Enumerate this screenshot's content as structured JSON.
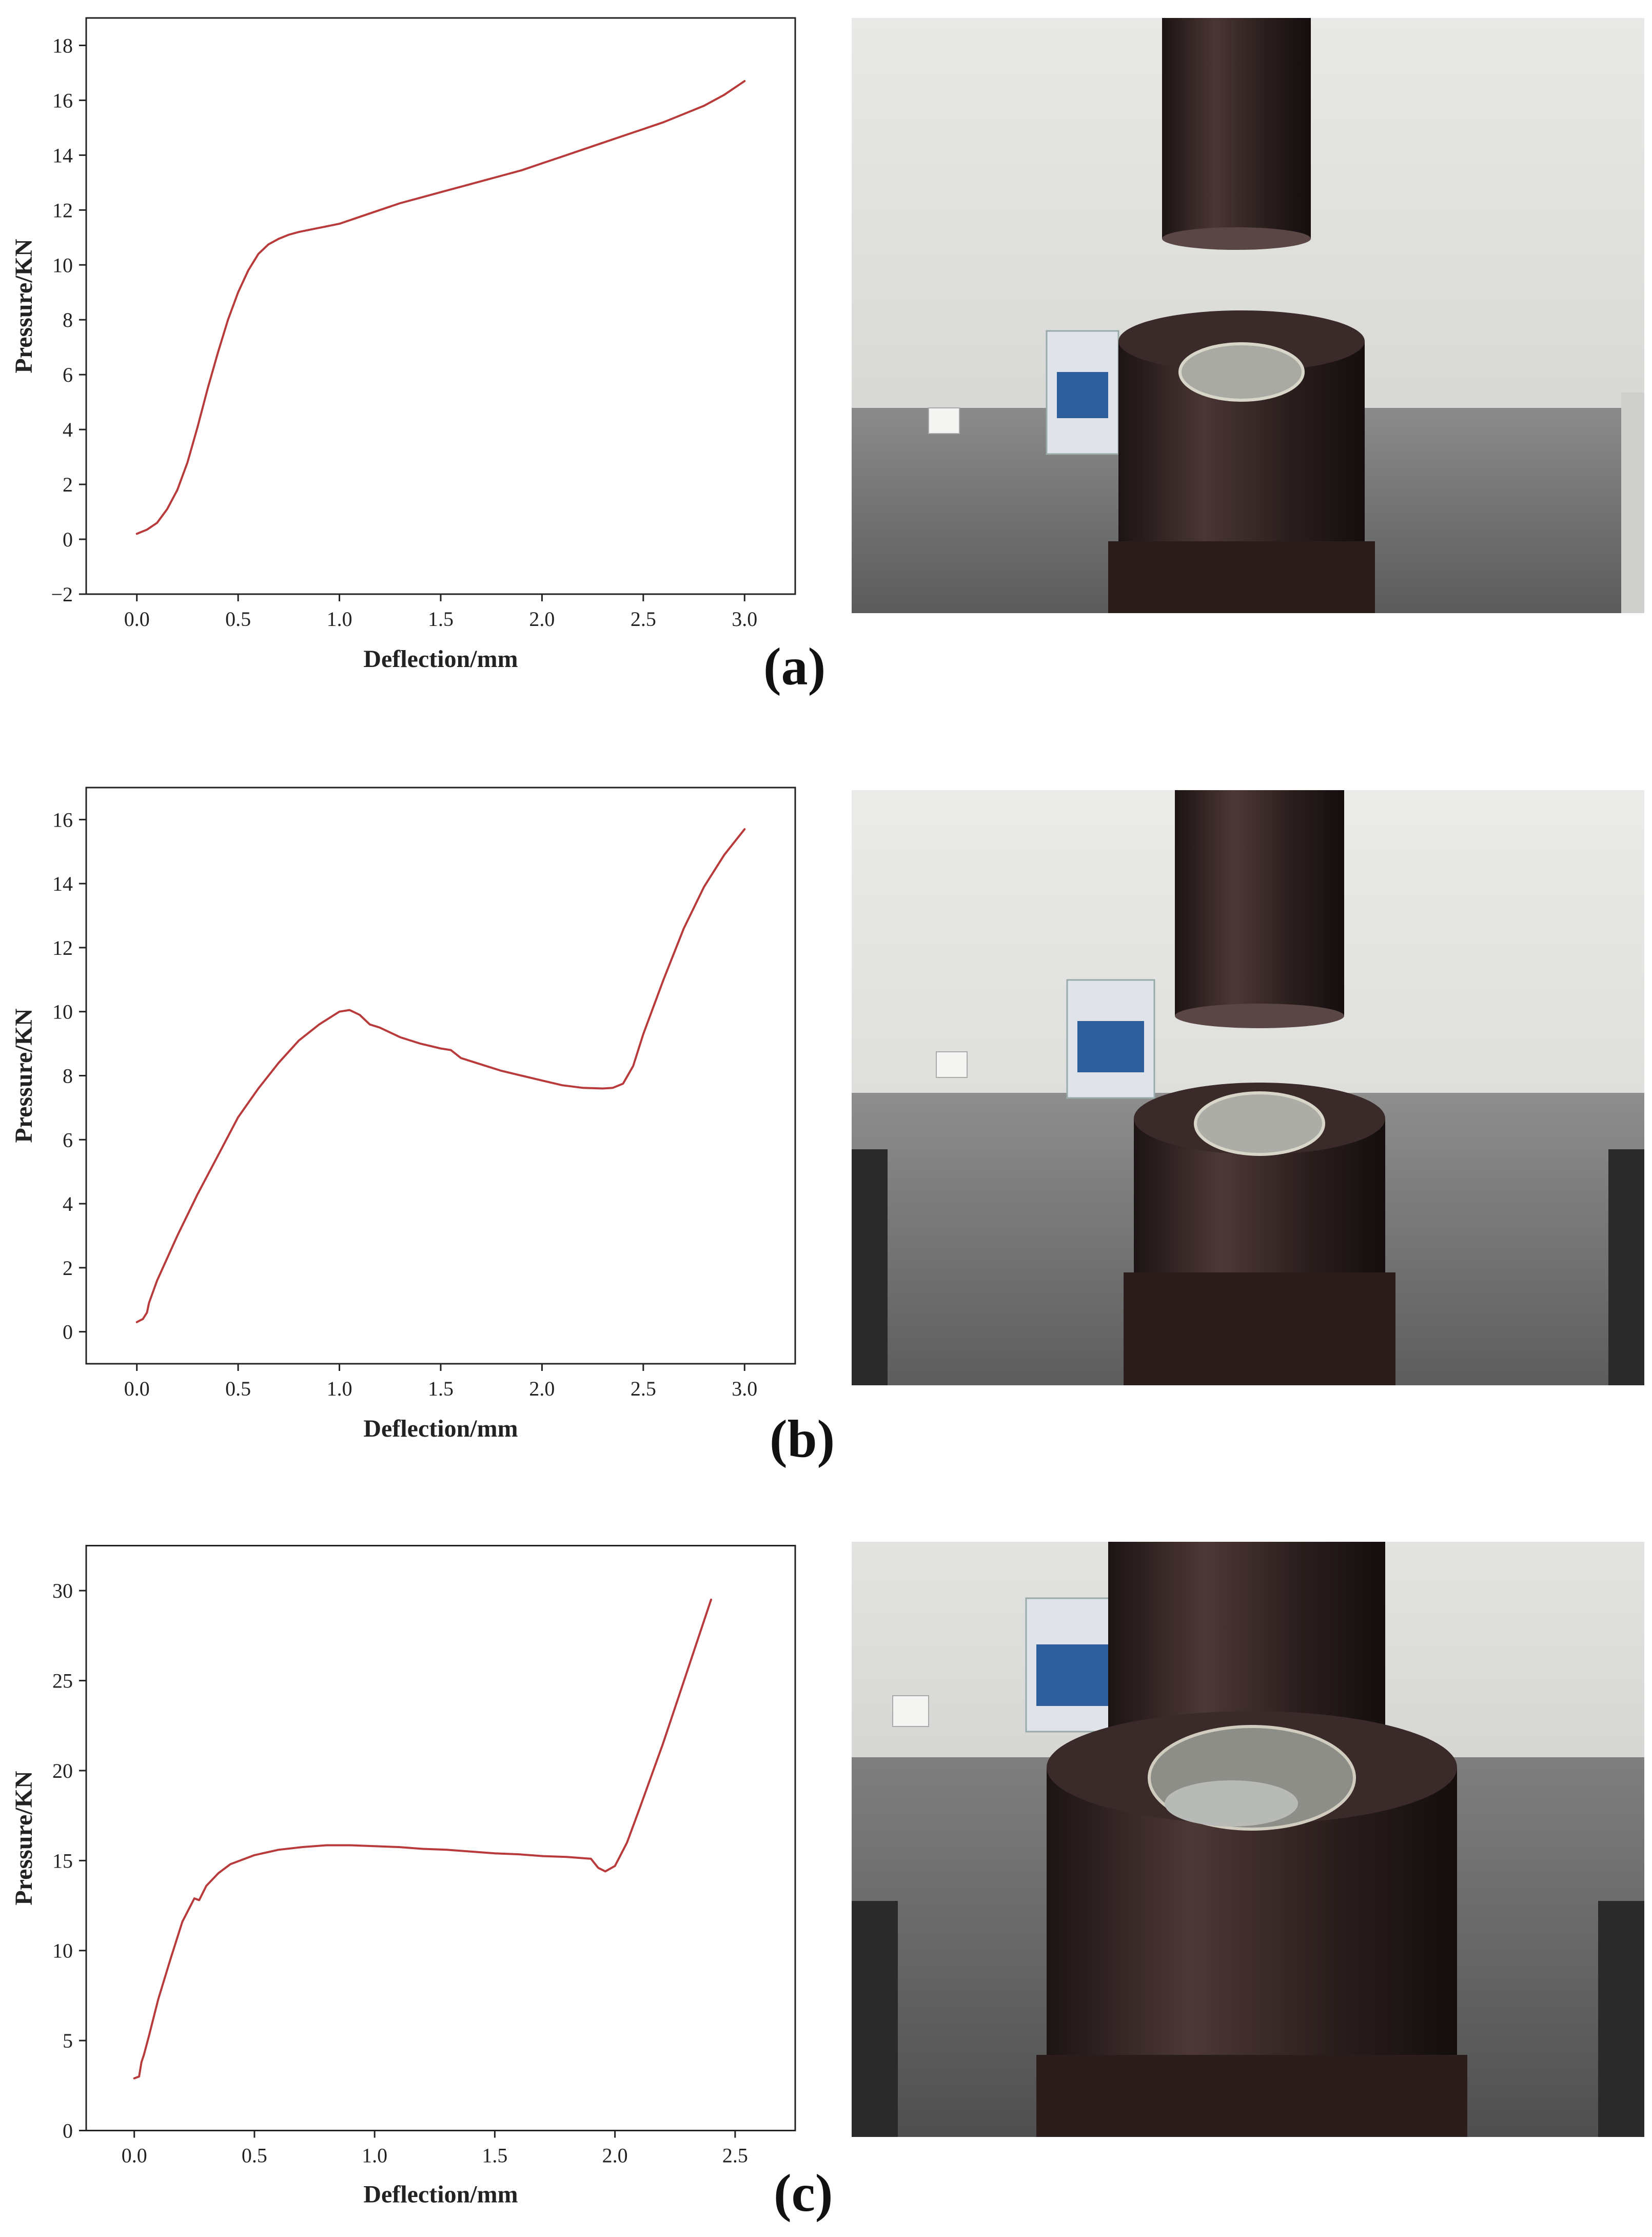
{
  "chart_data": [
    {
      "id": "a",
      "type": "line",
      "panel_label": "(a)",
      "xlabel": "Deflection/mm",
      "ylabel": "Pressure/KN",
      "xlim": [
        -0.25,
        3.25
      ],
      "ylim": [
        -2,
        19
      ],
      "xticks": [
        0.0,
        0.5,
        1.0,
        1.5,
        2.0,
        2.5,
        3.0
      ],
      "xtick_labels": [
        "0.0",
        "0.5",
        "1.0",
        "1.5",
        "2.0",
        "2.5",
        "3.0"
      ],
      "yticks": [
        -2,
        0,
        2,
        4,
        6,
        8,
        10,
        12,
        14,
        16,
        18
      ],
      "ytick_labels": [
        "−2",
        "0",
        "2",
        "4",
        "6",
        "8",
        "10",
        "12",
        "14",
        "16",
        "18"
      ],
      "line_color": "#b83a3a",
      "series": [
        {
          "x": [
            0.0,
            0.05,
            0.1,
            0.15,
            0.2,
            0.25,
            0.3,
            0.35,
            0.4,
            0.45,
            0.5,
            0.55,
            0.6,
            0.65,
            0.7,
            0.75,
            0.8,
            0.9,
            1.0,
            1.1,
            1.2,
            1.3,
            1.4,
            1.5,
            1.6,
            1.7,
            1.8,
            1.9,
            2.0,
            2.1,
            2.2,
            2.3,
            2.4,
            2.5,
            2.6,
            2.7,
            2.8,
            2.9,
            3.0
          ],
          "y": [
            0.2,
            0.35,
            0.6,
            1.1,
            1.8,
            2.8,
            4.1,
            5.5,
            6.8,
            8.0,
            9.0,
            9.8,
            10.4,
            10.75,
            10.95,
            11.1,
            11.2,
            11.35,
            11.5,
            11.75,
            12.0,
            12.25,
            12.45,
            12.65,
            12.85,
            13.05,
            13.25,
            13.45,
            13.7,
            13.95,
            14.2,
            14.45,
            14.7,
            14.95,
            15.2,
            15.5,
            15.8,
            16.2,
            16.7
          ]
        }
      ]
    },
    {
      "id": "b",
      "type": "line",
      "panel_label": "(b)",
      "xlabel": "Deflection/mm",
      "ylabel": "Pressure/KN",
      "xlim": [
        -0.25,
        3.25
      ],
      "ylim": [
        -1,
        17
      ],
      "xticks": [
        0.0,
        0.5,
        1.0,
        1.5,
        2.0,
        2.5,
        3.0
      ],
      "xtick_labels": [
        "0.0",
        "0.5",
        "1.0",
        "1.5",
        "2.0",
        "2.5",
        "3.0"
      ],
      "yticks": [
        0,
        2,
        4,
        6,
        8,
        10,
        12,
        14,
        16
      ],
      "ytick_labels": [
        "0",
        "2",
        "4",
        "6",
        "8",
        "10",
        "12",
        "14",
        "16"
      ],
      "line_color": "#b83a3a",
      "series": [
        {
          "x": [
            0.0,
            0.03,
            0.05,
            0.06,
            0.1,
            0.2,
            0.3,
            0.4,
            0.5,
            0.6,
            0.7,
            0.8,
            0.9,
            1.0,
            1.05,
            1.1,
            1.15,
            1.2,
            1.3,
            1.4,
            1.5,
            1.55,
            1.6,
            1.7,
            1.8,
            1.9,
            2.0,
            2.1,
            2.2,
            2.3,
            2.35,
            2.4,
            2.45,
            2.5,
            2.6,
            2.7,
            2.8,
            2.9,
            3.0
          ],
          "y": [
            0.3,
            0.4,
            0.6,
            0.9,
            1.6,
            3.0,
            4.3,
            5.5,
            6.7,
            7.6,
            8.4,
            9.1,
            9.6,
            10.0,
            10.05,
            9.9,
            9.6,
            9.5,
            9.2,
            9.0,
            8.85,
            8.8,
            8.55,
            8.35,
            8.15,
            8.0,
            7.85,
            7.7,
            7.62,
            7.6,
            7.62,
            7.75,
            8.3,
            9.3,
            11.0,
            12.6,
            13.9,
            14.9,
            15.7
          ]
        }
      ]
    },
    {
      "id": "c",
      "type": "line",
      "panel_label": "(c)",
      "xlabel": "Deflection/mm",
      "ylabel": "Pressure/KN",
      "xlim": [
        -0.2,
        2.75
      ],
      "ylim": [
        0,
        32.5
      ],
      "xticks": [
        0.0,
        0.5,
        1.0,
        1.5,
        2.0,
        2.5
      ],
      "xtick_labels": [
        "0.0",
        "0.5",
        "1.0",
        "1.5",
        "2.0",
        "2.5"
      ],
      "yticks": [
        0,
        5,
        10,
        15,
        20,
        25,
        30
      ],
      "ytick_labels": [
        "0",
        "5",
        "10",
        "15",
        "20",
        "25",
        "30"
      ],
      "line_color": "#b83a3a",
      "series": [
        {
          "x": [
            0.0,
            0.02,
            0.03,
            0.04,
            0.06,
            0.1,
            0.15,
            0.2,
            0.25,
            0.27,
            0.3,
            0.35,
            0.4,
            0.5,
            0.6,
            0.7,
            0.8,
            0.9,
            1.0,
            1.1,
            1.2,
            1.3,
            1.4,
            1.5,
            1.6,
            1.7,
            1.8,
            1.9,
            1.93,
            1.96,
            2.0,
            2.05,
            2.1,
            2.2,
            2.3,
            2.4
          ],
          "y": [
            2.9,
            3.0,
            3.8,
            4.2,
            5.2,
            7.3,
            9.5,
            11.6,
            12.9,
            12.8,
            13.6,
            14.3,
            14.8,
            15.3,
            15.6,
            15.75,
            15.85,
            15.85,
            15.8,
            15.75,
            15.65,
            15.6,
            15.5,
            15.4,
            15.35,
            15.25,
            15.2,
            15.1,
            14.6,
            14.4,
            14.7,
            16.0,
            17.8,
            21.5,
            25.5,
            29.5
          ]
        }
      ]
    }
  ]
}
